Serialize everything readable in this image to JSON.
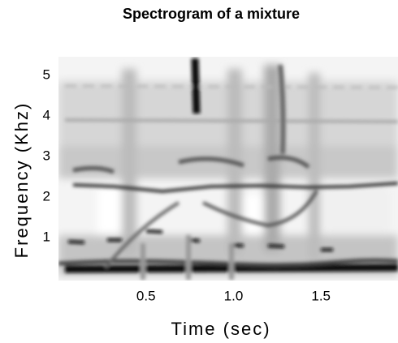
{
  "chart_data": {
    "type": "spectrogram",
    "title": "Spectrogram of a mixture",
    "x_label": "Time (sec)",
    "y_label": "Frequency (Khz)",
    "xlim": [
      0,
      1.94
    ],
    "xticks": [
      0.5,
      {
        "value": 1,
        "label": "1.0"
      },
      1.5
    ],
    "ylim": [
      0,
      5.46
    ],
    "yticks": [
      1,
      2,
      3,
      4,
      5
    ]
  }
}
